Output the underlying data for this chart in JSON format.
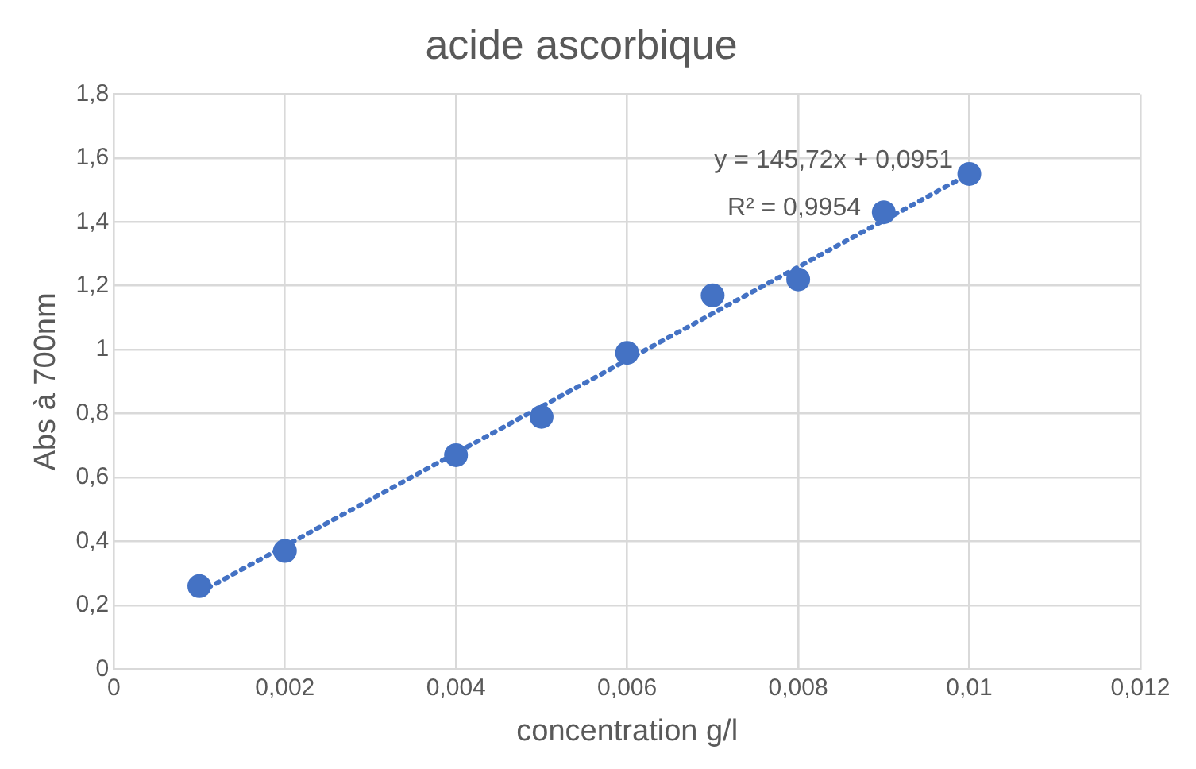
{
  "chart_data": {
    "type": "scatter",
    "title": "acide ascorbique",
    "xlabel": "concentration g/l",
    "ylabel": "Abs à 700nm",
    "x": [
      0.001,
      0.002,
      0.004,
      0.005,
      0.006,
      0.007,
      0.008,
      0.009,
      0.01
    ],
    "series": [
      {
        "color": "#4472c4",
        "values": [
          0.26,
          0.37,
          0.67,
          0.79,
          0.99,
          1.17,
          1.22,
          1.43,
          1.55
        ]
      },
      {
        "type": "line",
        "color": "#4472c4",
        "x": [
          0.001,
          0.01
        ],
        "values": [
          0.24,
          1.55
        ],
        "line_style": "dotted",
        "marker": "none"
      }
    ],
    "marker": "circle",
    "xlim": [
      0,
      0.012
    ],
    "xticks": [
      0,
      {
        "value": 0.002,
        "label": "0,002"
      },
      {
        "value": 0.004,
        "label": "0,004"
      },
      {
        "value": 0.006,
        "label": "0,006"
      },
      {
        "value": 0.008,
        "label": "0,008"
      },
      {
        "value": 0.01,
        "label": "0,01"
      },
      {
        "value": 0.012,
        "label": "0,012"
      }
    ],
    "ylim": [
      0,
      1.8
    ],
    "yticks": [
      0,
      {
        "value": 0.2,
        "label": "0,2"
      },
      {
        "value": 0.4,
        "label": "0,4"
      },
      {
        "value": 0.6,
        "label": "0,6"
      },
      {
        "value": 0.8,
        "label": "0,8"
      },
      1,
      {
        "value": 1.2,
        "label": "1,2"
      },
      {
        "value": 1.4,
        "label": "1,4"
      },
      {
        "value": 1.6,
        "label": "1,6"
      },
      {
        "value": 1.8,
        "label": "1,8"
      }
    ],
    "grid": true,
    "legend": false,
    "annotations": [
      "y = 145,72x + 0,0951",
      "R² = 0,9954"
    ]
  }
}
